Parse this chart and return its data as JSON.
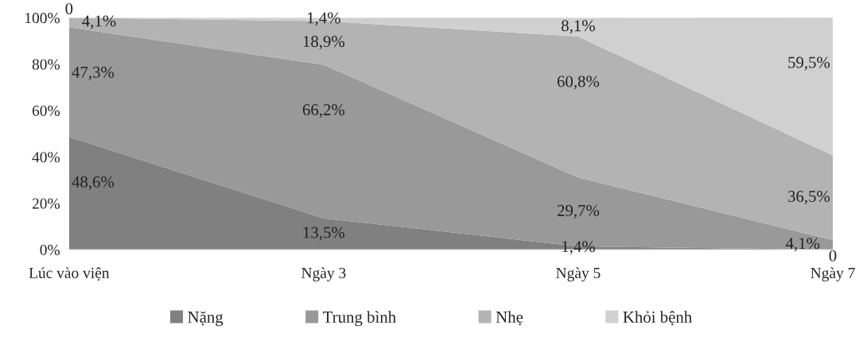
{
  "chart_data": {
    "type": "area",
    "stacked": true,
    "categories": [
      "Lúc vào viện",
      "Ngày 3",
      "Ngày 5",
      "Ngày 7"
    ],
    "series": [
      {
        "name": "Nặng",
        "color": "#808080",
        "values": [
          48.6,
          13.5,
          1.4,
          0
        ],
        "value_labels": [
          "48,6%",
          "13,5%",
          "1,4%",
          "0"
        ]
      },
      {
        "name": "Trung bình",
        "color": "#999999",
        "values": [
          47.3,
          66.2,
          29.7,
          4.1
        ],
        "value_labels": [
          "47,3%",
          "66,2%",
          "29,7%",
          "4,1%"
        ]
      },
      {
        "name": "Nhẹ",
        "color": "#b3b3b3",
        "values": [
          4.1,
          18.9,
          60.8,
          36.5
        ],
        "value_labels": [
          "4,1%",
          "18,9%",
          "60,8%",
          "36,5%"
        ]
      },
      {
        "name": "Khỏi bệnh",
        "color": "#d0d0d0",
        "values": [
          0,
          1.4,
          8.1,
          59.5
        ],
        "value_labels": [
          "0",
          "1,4%",
          "8,1%",
          "59,5%"
        ]
      }
    ],
    "ylim": [
      0,
      100
    ],
    "yticks": [
      {
        "value": 0,
        "label": "0%"
      },
      {
        "value": 20,
        "label": "20%"
      },
      {
        "value": 40,
        "label": "40%"
      },
      {
        "value": 60,
        "label": "60%"
      },
      {
        "value": 80,
        "label": "80%"
      },
      {
        "value": 100,
        "label": "100%"
      }
    ],
    "grid": false,
    "legend": "bottom"
  }
}
